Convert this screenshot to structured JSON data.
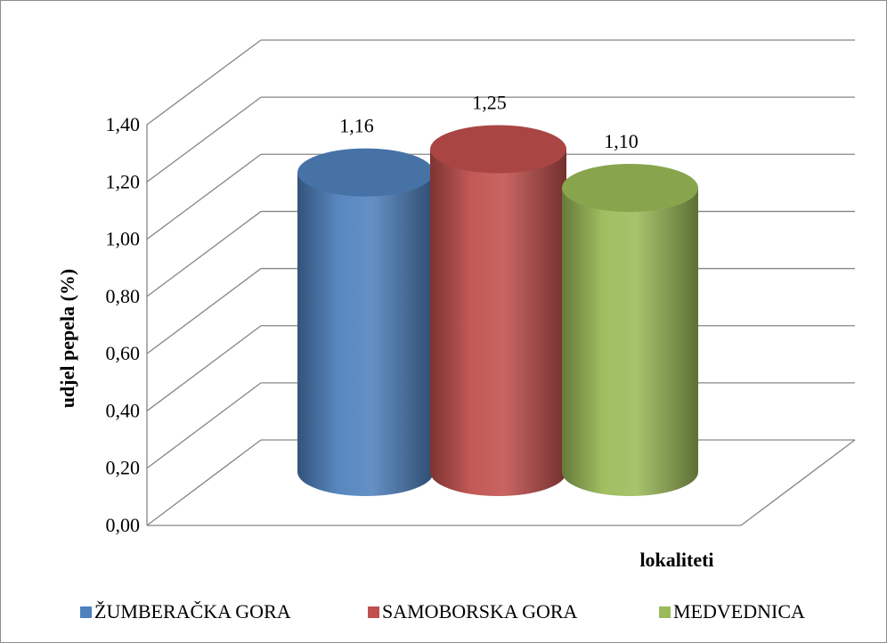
{
  "chart_data": {
    "type": "bar",
    "style": "3d-cylinder",
    "categories": [
      "ŽUMBERAČKA GORA",
      "SAMOBORSKA GORA",
      "MEDVEDNICA"
    ],
    "values": [
      1.16,
      1.25,
      1.1
    ],
    "data_labels": [
      "1,16",
      "1,25",
      "1,10"
    ],
    "colors": [
      "#4f81bd",
      "#c0504d",
      "#9bbb59"
    ],
    "ylabel": "udjel pepela (%)",
    "xlabel": "lokaliteti",
    "ylim": [
      0,
      1.4
    ],
    "y_ticks": [
      0,
      0.2,
      0.4,
      0.6,
      0.8,
      1.0,
      1.2,
      1.4
    ],
    "y_tick_labels": [
      "0,00",
      "0,20",
      "0,40",
      "0,60",
      "0,80",
      "1,00",
      "1,20",
      "1,40"
    ],
    "grid": true,
    "legend_position": "bottom"
  }
}
